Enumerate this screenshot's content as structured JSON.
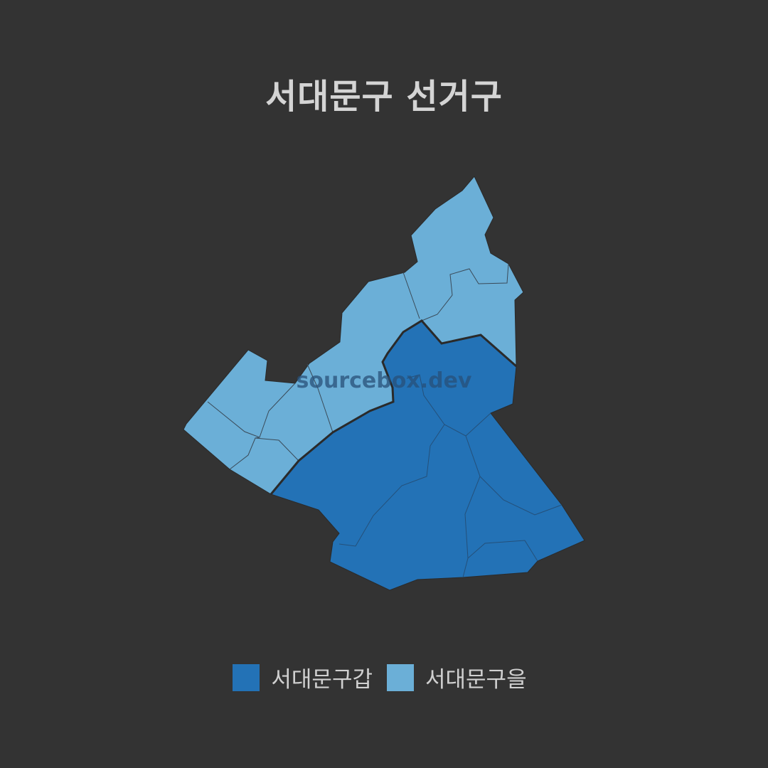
{
  "title": "서대문구 선거구",
  "watermark": "sourcebox.dev",
  "colors": {
    "background": "#333333",
    "gap": "#2372b6",
    "eul": "#6bafd7",
    "border": "#2a2a2a"
  },
  "legend": [
    {
      "label": "서대문구갑",
      "color": "#2372b6"
    },
    {
      "label": "서대문구을",
      "color": "#6bafd7"
    }
  ],
  "districts": [
    {
      "name": "서대문구갑",
      "color": "#2372b6"
    },
    {
      "name": "서대문구을",
      "color": "#6bafd7"
    }
  ]
}
